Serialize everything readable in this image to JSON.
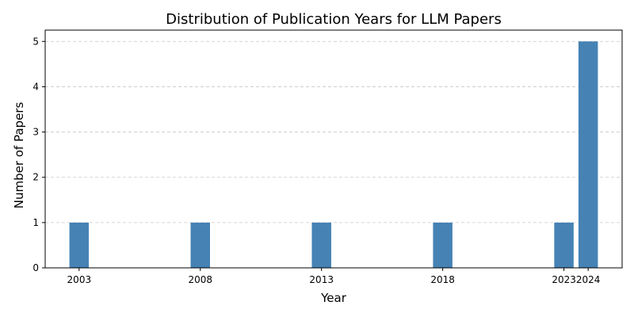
{
  "chart_data": {
    "type": "bar",
    "title": "Distribution of Publication Years for LLM Papers",
    "xlabel": "Year",
    "ylabel": "Number of Papers",
    "x": [
      2003,
      2008,
      2013,
      2018,
      2023,
      2024
    ],
    "values": [
      1,
      1,
      1,
      1,
      1,
      5
    ],
    "x_ticks": [
      2003,
      2008,
      2013,
      2018,
      2023,
      2024
    ],
    "y_ticks": [
      0,
      1,
      2,
      3,
      4,
      5
    ],
    "ylim": [
      0,
      5.25
    ],
    "xlim": [
      2001.6,
      2025.4
    ],
    "grid": "y-dashed",
    "bar_color": "#4682b4"
  }
}
